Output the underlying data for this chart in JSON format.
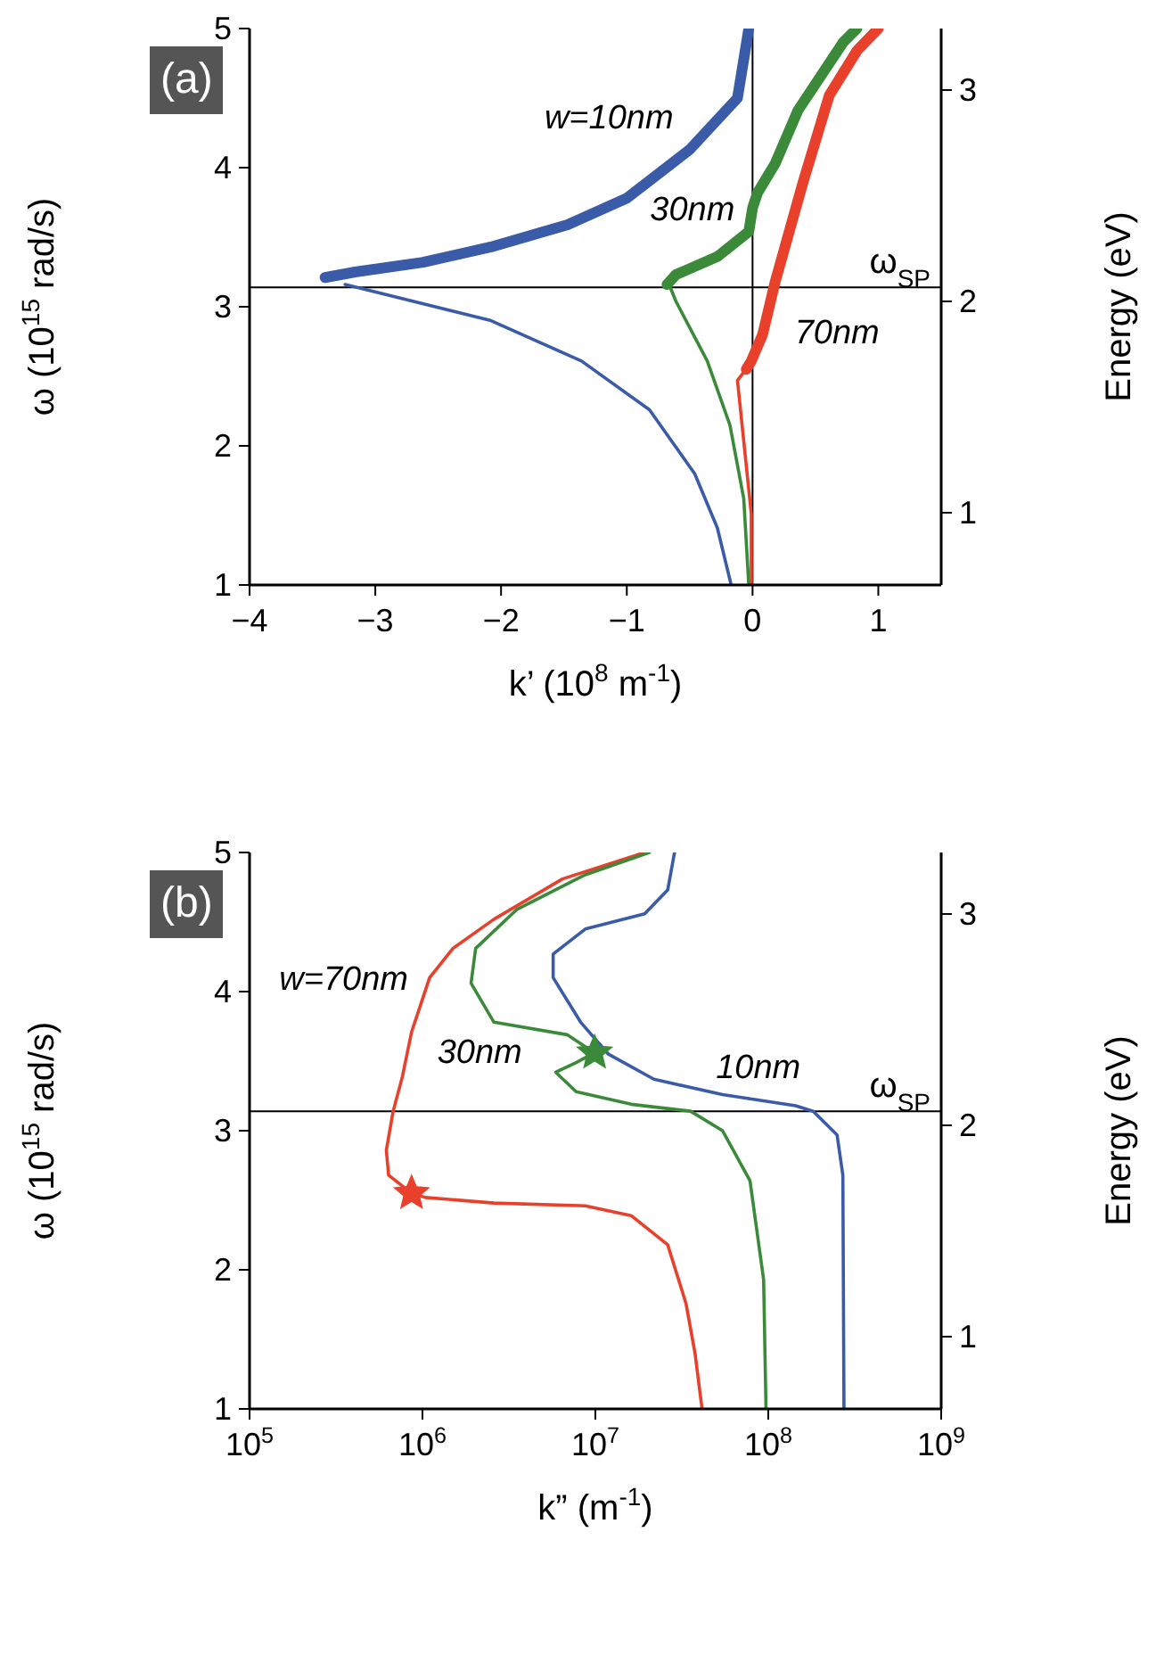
{
  "chart_data": [
    {
      "type": "line",
      "title": "(a)",
      "xlabel": "k’ (10$^{8}$ m$^{-1}$)",
      "ylabel": "ω (10$^{15}$ rad/s)",
      "y2label": "Energy (eV)",
      "xlim": [
        -4,
        1.5
      ],
      "xticks": [
        {
          "value": -4,
          "label": "−4"
        },
        {
          "value": -3,
          "label": "−3"
        },
        {
          "value": -2,
          "label": "−2"
        },
        {
          "value": -1,
          "label": "−1"
        },
        0,
        1
      ],
      "ylim": [
        1,
        5
      ],
      "yticks": [
        1,
        2,
        3,
        4,
        5
      ],
      "y2lim": [
        0.658,
        3.291
      ],
      "y2ticks": [
        1,
        2,
        3
      ],
      "series": [
        {
          "name": "w=10nm",
          "color": "#3a5ba8",
          "x": [
            -3.4,
            -3.16,
            -2.62,
            -2.08,
            -1.47,
            -1.0,
            -0.5,
            -0.12,
            -0.03
          ],
          "values": [
            3.21,
            3.25,
            3.32,
            3.43,
            3.59,
            3.78,
            4.13,
            4.5,
            5.0
          ]
        },
        {
          "name": "30nm",
          "color": "#3a8a3a",
          "x": [
            -0.68,
            -0.61,
            -0.28,
            -0.03,
            0.0,
            0.04,
            0.18,
            0.36,
            0.72,
            0.83
          ],
          "values": [
            3.16,
            3.23,
            3.36,
            3.54,
            3.71,
            3.82,
            4.03,
            4.41,
            4.9,
            5.0
          ]
        },
        {
          "name": "70nm",
          "color": "#e8402a",
          "x": [
            -0.05,
            -0.01,
            0.08,
            0.18,
            0.4,
            0.61,
            0.83,
            1.0
          ],
          "values": [
            2.55,
            2.61,
            2.8,
            3.18,
            3.89,
            4.52,
            4.84,
            5.0
          ]
        },
        {
          "color": "#3a5ba8",
          "x": [
            -3.24,
            -2.08,
            -1.36,
            -0.82,
            -0.46,
            -0.28,
            -0.17
          ],
          "values": [
            3.16,
            2.9,
            2.61,
            2.26,
            1.8,
            1.41,
            1.0
          ]
        },
        {
          "color": "#3a8a3a",
          "x": [
            -0.65,
            -0.61,
            -0.36,
            -0.18,
            -0.07,
            -0.03
          ],
          "values": [
            3.13,
            3.04,
            2.61,
            2.15,
            1.62,
            1.0
          ]
        },
        {
          "color": "#e8402a",
          "x": [
            -0.07,
            -0.12,
            -0.01,
            -0.01
          ],
          "values": [
            2.53,
            2.47,
            1.51,
            1.0
          ]
        }
      ],
      "ref_lines": [
        {
          "axis": "y",
          "value": 3.14,
          "label": "ω$_{SP}$",
          "color": "#000000"
        },
        {
          "axis": "x",
          "value": 0,
          "color": "#000000"
        }
      ]
    },
    {
      "type": "line",
      "title": "(b)",
      "xlabel": "k” (m$^{-1}$)",
      "ylabel": "ω (10$^{15}$ rad/s)",
      "y2label": "Energy (eV)",
      "log": "x",
      "xlim": [
        100000,
        1000000000
      ],
      "xticks": [
        {
          "value": 100000,
          "label": "10$^{5}$"
        },
        {
          "value": 1000000,
          "label": "10$^{6}$"
        },
        {
          "value": 10000000,
          "label": "10$^{7}$"
        },
        {
          "value": 100000000,
          "label": "10$^{8}$"
        },
        {
          "value": 1000000000,
          "label": "10$^{9}$"
        }
      ],
      "ylim": [
        1,
        5
      ],
      "yticks": [
        1,
        2,
        3,
        4,
        5
      ],
      "y2lim": [
        0.658,
        3.291
      ],
      "y2ticks": [
        1,
        2,
        3
      ],
      "series": [
        {
          "name": "w=70nm",
          "color": "#e8402a",
          "x": [
            41400000,
            37700000,
            33400000,
            26200000,
            16100000,
            8750000,
            2590000,
            1040000,
            865000,
            637000,
            618000,
            677000,
            766000,
            865000,
            1100000,
            1500000,
            2590000,
            6460000,
            19300000
          ],
          "values": [
            1.0,
            1.4,
            1.76,
            2.18,
            2.39,
            2.46,
            2.48,
            2.52,
            2.55,
            2.68,
            2.86,
            3.14,
            3.39,
            3.71,
            4.1,
            4.31,
            4.52,
            4.81,
            5.0
          ]
        },
        {
          "name": "30nm",
          "color": "#3a8a3a",
          "x": [
            97000000,
            94000000,
            78400000,
            54400000,
            35500000,
            16100000,
            7740000,
            5900000,
            7740000,
            9900000,
            6860000,
            2590000,
            1910000,
            2030000,
            3510000,
            8750000,
            20500000
          ],
          "values": [
            1.0,
            1.93,
            2.64,
            3.0,
            3.14,
            3.19,
            3.28,
            3.42,
            3.49,
            3.56,
            3.69,
            3.78,
            4.06,
            4.31,
            4.59,
            4.84,
            5.0
          ]
        },
        {
          "name": "10nm",
          "color": "#3a5ba8",
          "x": [
            274000000,
            270000000,
            250000000,
            182000000,
            144000000,
            54400000,
            21800000,
            11900000,
            8220000,
            5700000,
            5700000,
            8750000,
            19300000,
            26200000,
            28700000
          ],
          "values": [
            1.0,
            2.68,
            2.97,
            3.14,
            3.18,
            3.26,
            3.37,
            3.55,
            3.78,
            4.1,
            4.27,
            4.45,
            4.56,
            4.73,
            5.0
          ]
        },
        {
          "type": "scatter",
          "marker": "star",
          "colors": [
            "#e8402a",
            "#3a8a3a"
          ],
          "x": [
            865000,
            9900000
          ],
          "values": [
            2.55,
            3.56
          ]
        }
      ],
      "ref_lines": [
        {
          "axis": "y",
          "value": 3.14,
          "label": "ω$_{SP}$",
          "color": "#000000"
        }
      ]
    }
  ]
}
